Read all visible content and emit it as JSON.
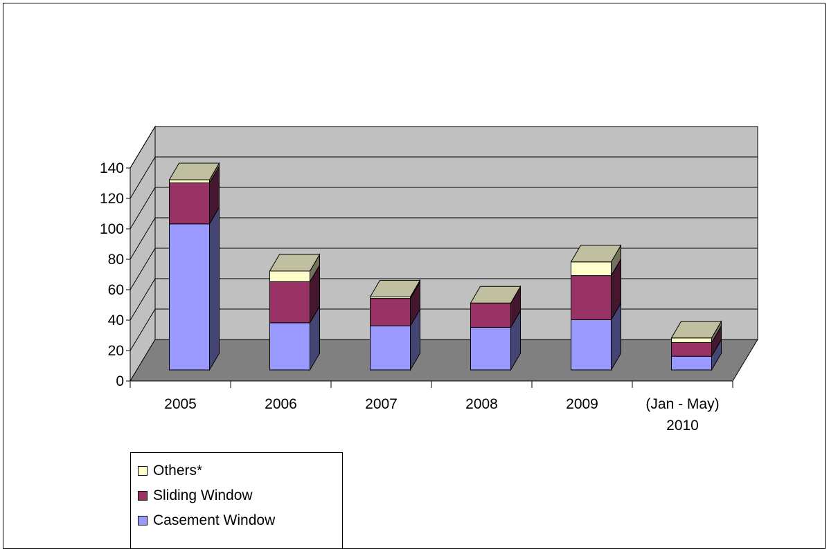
{
  "chart_data": {
    "type": "bar",
    "stacked": true,
    "three_d": true,
    "title": "",
    "xlabel": "",
    "ylabel": "",
    "categories": [
      "2005",
      "2006",
      "2007",
      "2008",
      "2009",
      "(Jan - May) 2010"
    ],
    "category_lines": [
      [
        "2005"
      ],
      [
        "2006"
      ],
      [
        "2007"
      ],
      [
        "2008"
      ],
      [
        "2009"
      ],
      [
        "(Jan - May)",
        "2010"
      ]
    ],
    "series": [
      {
        "name": "Casement Window",
        "color": "#9999ff",
        "values": [
          96,
          31,
          29,
          28,
          33,
          9
        ]
      },
      {
        "name": "Sliding Window",
        "color": "#993366",
        "values": [
          27,
          27,
          18,
          16,
          29,
          9
        ]
      },
      {
        "name": "Others*",
        "color": "#ffffcc",
        "values": [
          2,
          7,
          1,
          0,
          9,
          3
        ]
      }
    ],
    "ylim": [
      0,
      140
    ],
    "yticks": [
      0,
      20,
      40,
      60,
      80,
      100,
      120,
      140
    ],
    "grid": true,
    "legend_position": "bottom-left",
    "legend_order": [
      "Others*",
      "Sliding Window",
      "Casement Window"
    ],
    "colors": {
      "back_wall": "#c0c0c0",
      "side_wall": "#c0c0c0",
      "floor": "#808080",
      "bar_top": "#c0c0a0"
    }
  }
}
